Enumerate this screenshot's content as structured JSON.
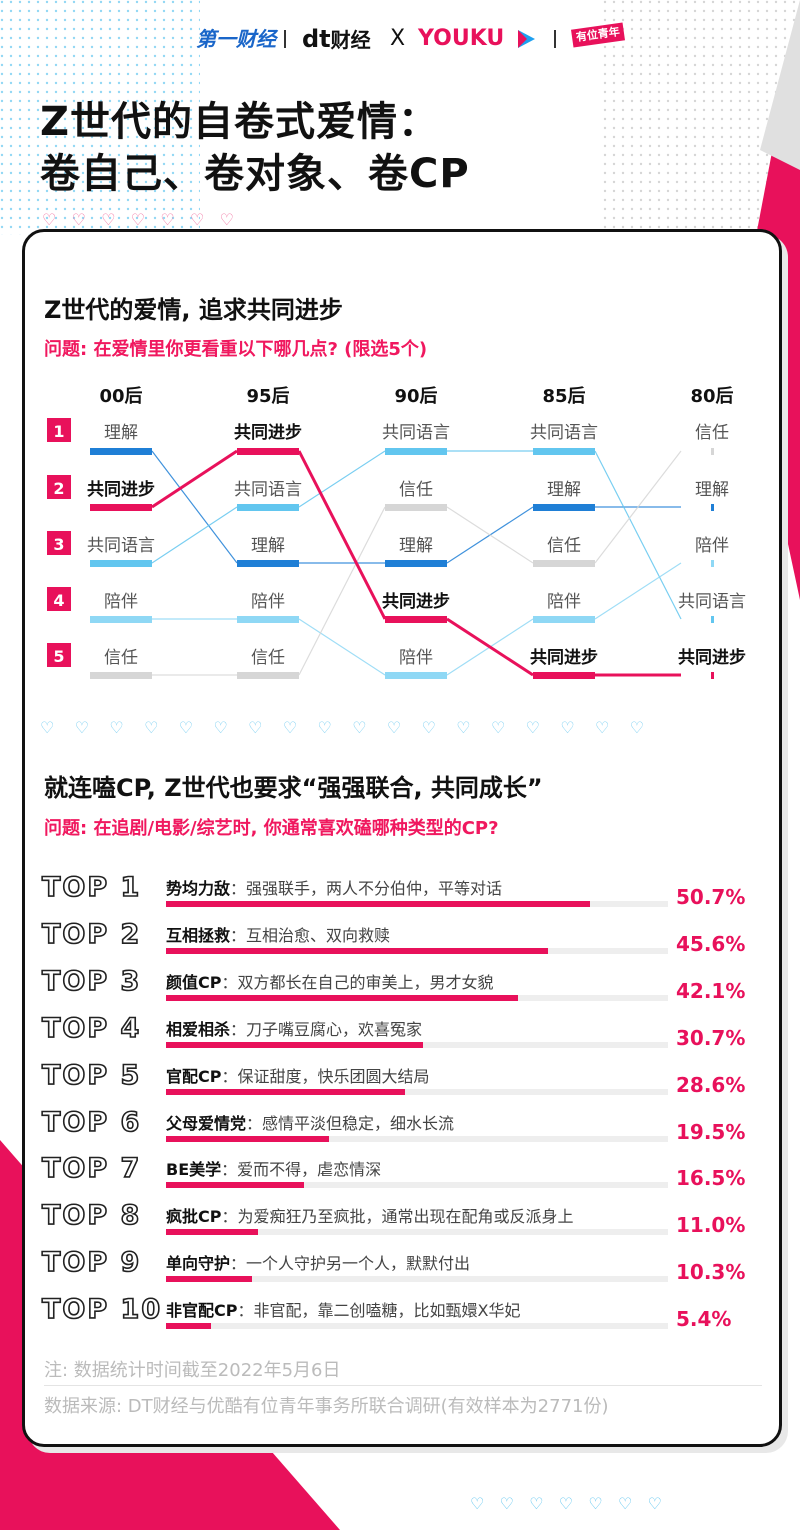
{
  "header": {
    "logo1": "第一财经",
    "logo2": "财经",
    "logo2_mark": "dt",
    "cross": "X",
    "logo3": "YOUKU",
    "logo4": "有位青年",
    "title_line1": "Z世代的自卷式爱情：",
    "title_line2": "卷自己、卷对象、卷CP"
  },
  "section1": {
    "title": "Z世代的爱情, 追求共同进步",
    "question": "问题: 在爱情里你更看重以下哪几点? (限选5个)"
  },
  "section2": {
    "title": "就连嗑CP, Z世代也要求“强强联合, 共同成长”",
    "question": "问题: 在追剧/电影/综艺时, 你通常喜欢磕哪种类型的CP?"
  },
  "chart_data": [
    {
      "type": "bump",
      "groups": [
        "00后",
        "95后",
        "90后",
        "85后",
        "80后"
      ],
      "rank_labels": [
        "1",
        "2",
        "3",
        "4",
        "5"
      ],
      "highlight": "共同进步",
      "rankings": {
        "00后": [
          "理解",
          "共同进步",
          "共同语言",
          "陪伴",
          "信任"
        ],
        "95后": [
          "共同进步",
          "共同语言",
          "理解",
          "陪伴",
          "信任"
        ],
        "90后": [
          "共同语言",
          "信任",
          "理解",
          "共同进步",
          "陪伴"
        ],
        "85后": [
          "共同语言",
          "理解",
          "信任",
          "陪伴",
          "共同进步"
        ],
        "80后": [
          "信任",
          "理解",
          "陪伴",
          "共同语言",
          "共同进步"
        ]
      },
      "series_colors": {
        "共同进步": "#e8115b",
        "理解": "#1f7fd6",
        "共同语言": "#62c6ef",
        "陪伴": "#8fd8f5",
        "信任": "#d6d6d6"
      }
    },
    {
      "type": "bar",
      "orientation": "horizontal",
      "unit": "%",
      "xlim": [
        0,
        60
      ],
      "categories": [
        "TOP 1",
        "TOP 2",
        "TOP 3",
        "TOP 4",
        "TOP 5",
        "TOP 6",
        "TOP 7",
        "TOP 8",
        "TOP 9",
        "TOP 10"
      ],
      "names": [
        "势均力敌",
        "互相拯救",
        "颜值CP",
        "相爱相杀",
        "官配CP",
        "父母爱情党",
        "BE美学",
        "疯批CP",
        "单向守护",
        "非官配CP"
      ],
      "descriptions": [
        "强强联手，两人不分伯仲，平等对话",
        "互相治愈、双向救赎",
        "双方都长在自己的审美上，男才女貌",
        "刀子嘴豆腐心，欢喜冤家",
        "保证甜度，快乐团圆大结局",
        "感情平淡但稳定，细水长流",
        "爱而不得，虐恋情深",
        "为爱痴狂乃至疯批，通常出现在配角或反派身上",
        "一个人守护另一个人，默默付出",
        "非官配，靠二创嗑糖，比如甄嬛X华妃"
      ],
      "values": [
        50.7,
        45.6,
        42.1,
        30.7,
        28.6,
        19.5,
        16.5,
        11.0,
        10.3,
        5.4
      ],
      "value_labels": [
        "50.7%",
        "45.6%",
        "42.1%",
        "30.7%",
        "28.6%",
        "19.5%",
        "16.5%",
        "11.0%",
        "10.3%",
        "5.4%"
      ],
      "bar_color": "#e8115b"
    }
  ],
  "notes": {
    "note1": "注: 数据统计时间截至2022年5月6日",
    "note2": "数据来源: DT财经与优酷有位青年事务所联合调研(有效样本为2771份)"
  },
  "colors": {
    "accent": "#e8115b",
    "dark": "#111111",
    "light_blue": "#62c6ef"
  }
}
